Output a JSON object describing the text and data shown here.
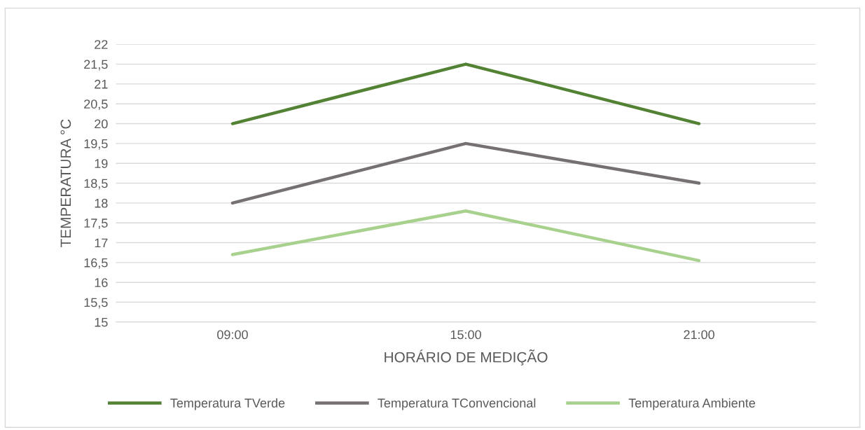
{
  "chart_data": {
    "type": "line",
    "xlabel": "HORÁRIO DE MEDIÇÃO",
    "ylabel": "TEMPERATURA °C",
    "categories": [
      "09:00",
      "15:00",
      "21:00"
    ],
    "series": [
      {
        "name": "Temperatura TVerde",
        "color": "#548235",
        "values": [
          20,
          21.5,
          20
        ]
      },
      {
        "name": "Temperatura TConvencional",
        "color": "#767171",
        "values": [
          18,
          19.5,
          18.5
        ]
      },
      {
        "name": "Temperatura Ambiente",
        "color": "#a9d18e",
        "values": [
          16.7,
          17.8,
          16.55
        ]
      }
    ],
    "ylim": [
      15,
      22
    ],
    "yticks": [
      15,
      {
        "value": 15.5,
        "label": "15,5"
      },
      16,
      {
        "value": 16.5,
        "label": "16,5"
      },
      17,
      {
        "value": 17.5,
        "label": "17,5"
      },
      18,
      {
        "value": 18.5,
        "label": "18,5"
      },
      19,
      {
        "value": 19.5,
        "label": "19,5"
      },
      20,
      {
        "value": 20.5,
        "label": "20,5"
      },
      21,
      {
        "value": 21.5,
        "label": "21,5"
      },
      22
    ],
    "grid": "y",
    "legend": "bottom",
    "marker": "none",
    "line_style": "solid"
  }
}
